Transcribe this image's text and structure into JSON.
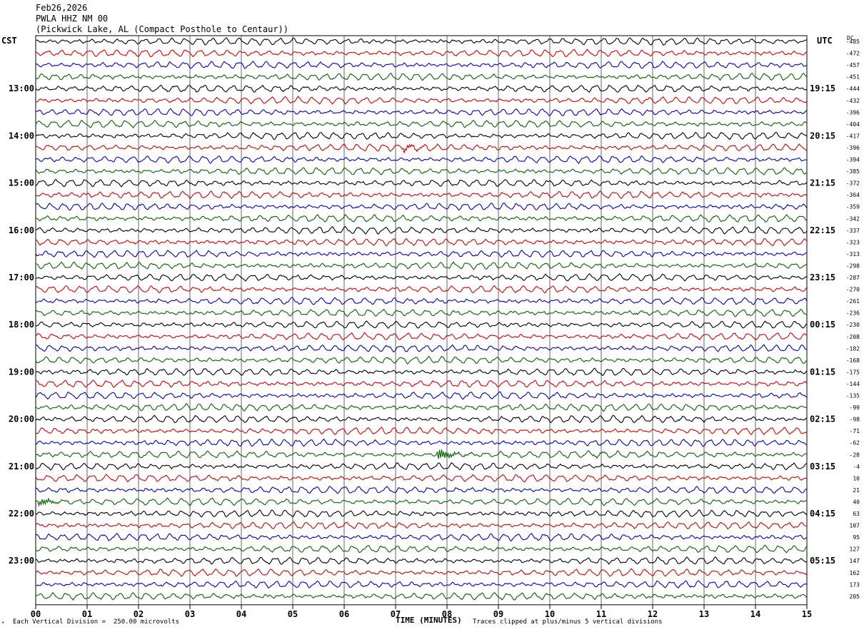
{
  "header": {
    "date": "Feb26,2026",
    "station": "PWLA HHZ NM 00",
    "location": "(Pickwick Lake, AL (Compact Posthole to Centaur))"
  },
  "left_tz": "CST",
  "right_tz": "UTC",
  "dc_label": "DC",
  "footer": {
    "scale": "Each Vertical Division =  250.00 microvolts",
    "xlabel": "TIME (MINUTES)",
    "clip_note": "Traces clipped at plus/minus 5 vertical divisions",
    "corner_mark": "*"
  },
  "chart_data": {
    "type": "line",
    "title": "PWLA HHZ NM 00",
    "xlabel": "TIME (MINUTES)",
    "x_ticks": [
      "00",
      "01",
      "02",
      "03",
      "04",
      "05",
      "06",
      "07",
      "08",
      "09",
      "10",
      "11",
      "12",
      "13",
      "14",
      "15"
    ],
    "xlim": [
      0,
      15
    ],
    "trace_colors": [
      "#000000",
      "#d40000",
      "#0000c8",
      "#006400"
    ],
    "grid": "vertical lines at each minute",
    "left_hour_labels": [
      "13:00",
      "14:00",
      "15:00",
      "16:00",
      "17:00",
      "18:00",
      "19:00",
      "20:00",
      "21:00",
      "22:00",
      "23:00"
    ],
    "right_hour_labels": [
      "19:15",
      "20:15",
      "21:15",
      "22:15",
      "23:15",
      "00:15",
      "01:15",
      "02:15",
      "03:15",
      "04:15",
      "05:15"
    ],
    "dc_offsets": [
      "-485",
      "-472",
      "-457",
      "-451",
      "-444",
      "-432",
      "-396",
      "-404",
      "-417",
      "-396",
      "-394",
      "-385",
      "-372",
      "-364",
      "-359",
      "-342",
      "-337",
      "-323",
      "-313",
      "-298",
      "-287",
      "-270",
      "-261",
      "-236",
      "-230",
      "-208",
      "-182",
      "-168",
      "-175",
      "-144",
      "-135",
      "-99",
      "-98",
      "-71",
      "-62",
      "-28",
      "-4",
      "10",
      "21",
      "40",
      "63",
      "107",
      "95",
      "127",
      "147",
      "162",
      "173",
      "205"
    ],
    "events": [
      {
        "row": 9,
        "minute": 7.2,
        "amplitude": "moderate"
      },
      {
        "row": 23,
        "minute": 11.6,
        "amplitude": "small"
      },
      {
        "row": 23,
        "minute": 12.2,
        "amplitude": "small"
      },
      {
        "row": 35,
        "minute": 7.85,
        "amplitude": "large"
      },
      {
        "row": 35,
        "minute": 10.9,
        "amplitude": "small"
      },
      {
        "row": 39,
        "minute": 0.1,
        "amplitude": "moderate"
      }
    ]
  }
}
